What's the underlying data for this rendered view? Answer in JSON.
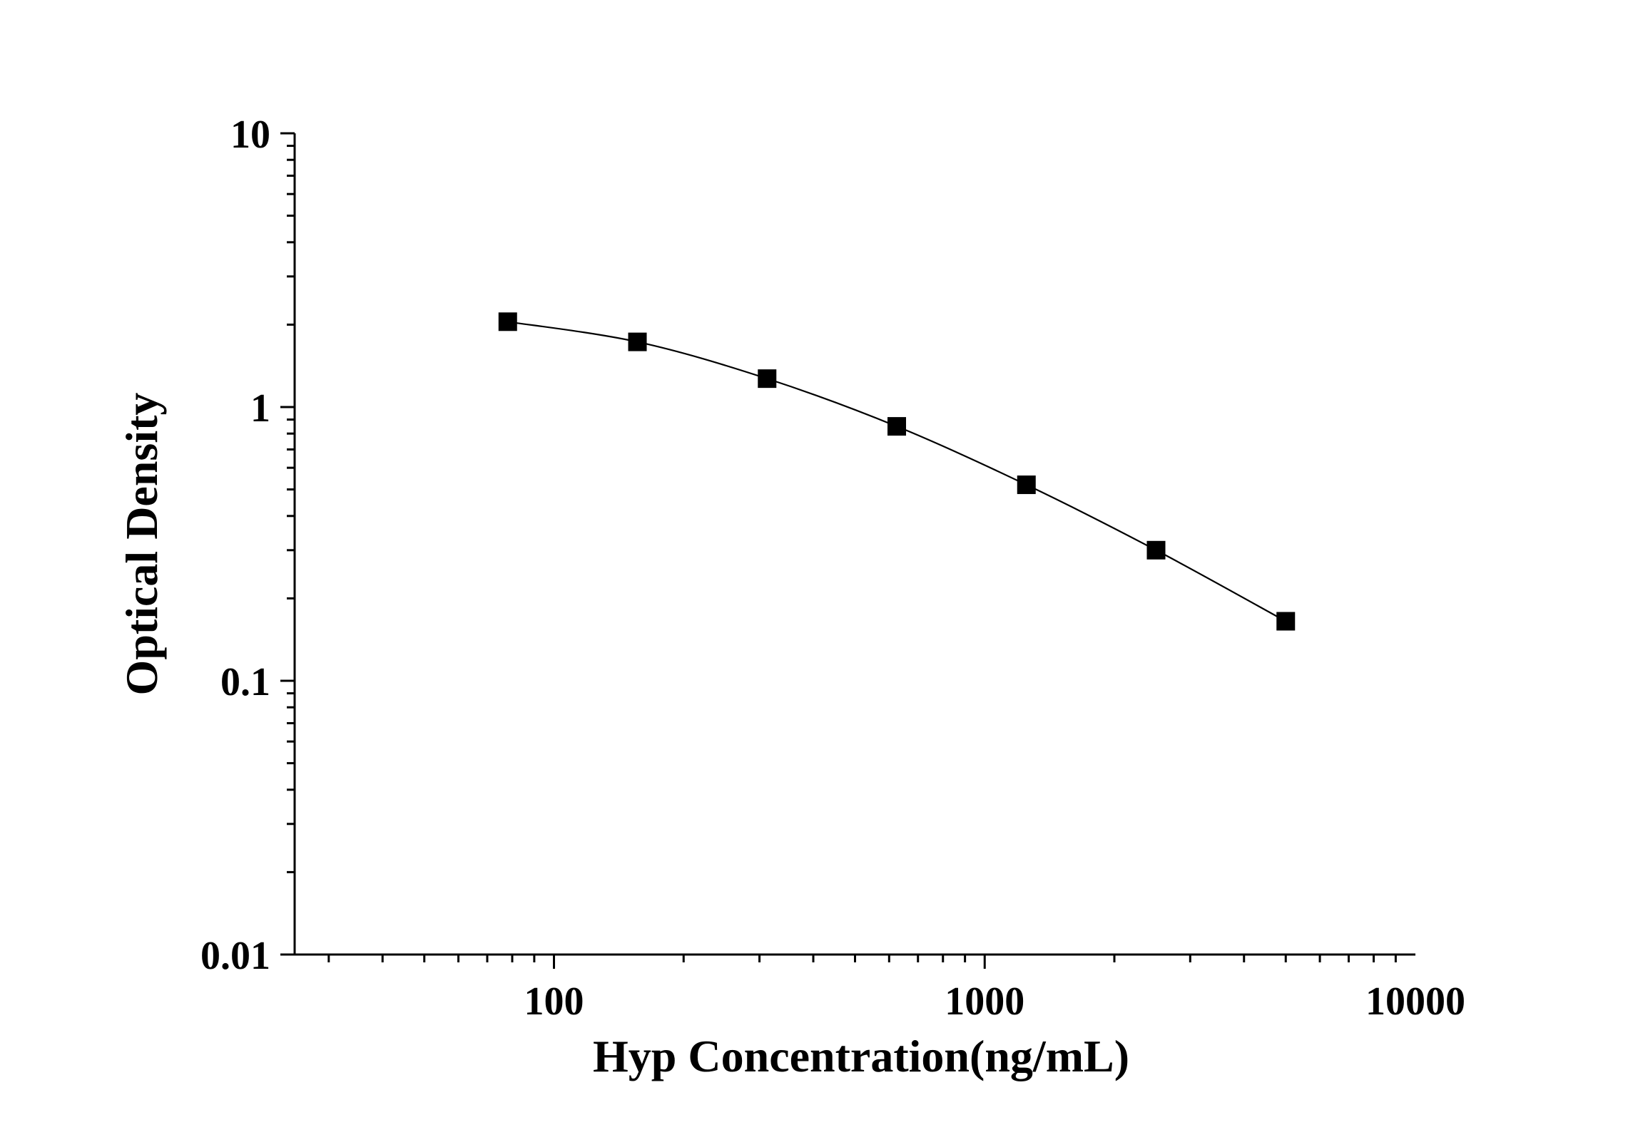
{
  "chart_data": {
    "type": "line",
    "title": "",
    "xlabel": "Hyp Concentration(ng/mL)",
    "ylabel": "Optical Density",
    "xscale": "log",
    "yscale": "log",
    "xlim": [
      25,
      10000
    ],
    "ylim": [
      0.01,
      10
    ],
    "x_ticks": [
      {
        "value": 100,
        "label": "100"
      },
      {
        "value": 1000,
        "label": "1000"
      },
      {
        "value": 10000,
        "label": "10000"
      }
    ],
    "y_ticks": [
      {
        "value": 10,
        "label": "10"
      },
      {
        "value": 1,
        "label": "1"
      },
      {
        "value": 0.1,
        "label": "0.1"
      },
      {
        "value": 0.01,
        "label": "0.01"
      }
    ],
    "grid": false,
    "legend": "none",
    "marker": "square",
    "colors": {
      "line": "#000000",
      "marker": "#000000",
      "axis": "#000000",
      "background": "#ffffff"
    },
    "series": [
      {
        "x": [
          78.125,
          156.25,
          312.5,
          625,
          1250,
          2500,
          5000
        ],
        "y": [
          2.05,
          1.73,
          1.27,
          0.85,
          0.52,
          0.3,
          0.165
        ]
      }
    ]
  }
}
